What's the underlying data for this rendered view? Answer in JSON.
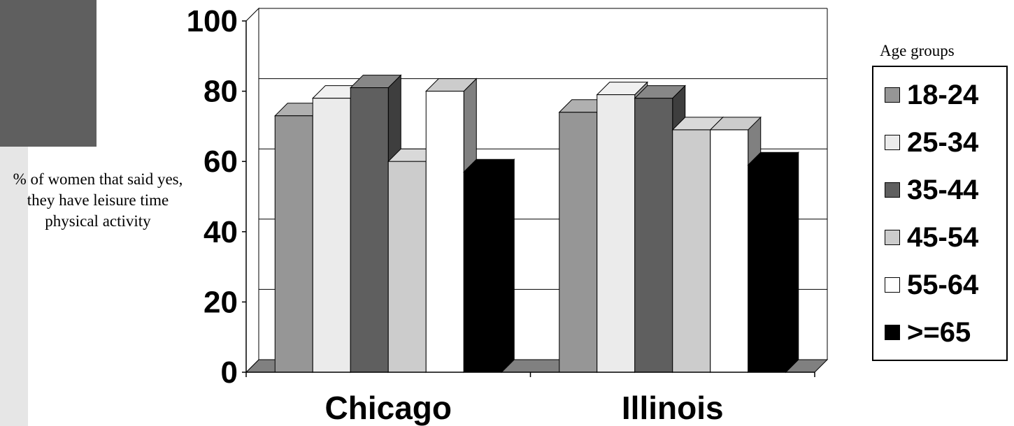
{
  "chart_data": {
    "type": "bar",
    "title": "",
    "ylabel": "% of women that said yes, they have leisure time physical activity",
    "xlabel": "",
    "ylim": [
      0,
      100
    ],
    "yticks": [
      0,
      20,
      40,
      60,
      80,
      100
    ],
    "grid": true,
    "legend_title": "Age groups",
    "legend_position": "right",
    "categories": [
      "Chicago",
      "Illinois"
    ],
    "series": [
      {
        "name": "18-24",
        "color": "#969696",
        "values": [
          73,
          74
        ]
      },
      {
        "name": "25-34",
        "color": "#ebebeb",
        "values": [
          78,
          79
        ]
      },
      {
        "name": "35-44",
        "color": "#5f5f5f",
        "values": [
          81,
          78
        ]
      },
      {
        "name": "45-54",
        "color": "#cccccc",
        "values": [
          60,
          69
        ]
      },
      {
        "name": "55-64",
        "color": "#ffffff",
        "values": [
          80,
          69
        ]
      },
      {
        "name": ">=65",
        "color": "#000000",
        "values": [
          57,
          59
        ]
      }
    ]
  }
}
